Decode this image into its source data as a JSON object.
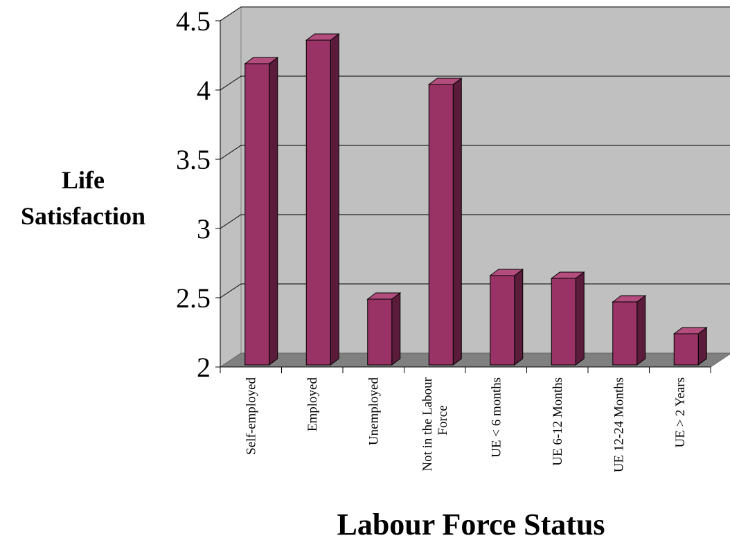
{
  "chart_data": {
    "type": "bar",
    "style": "3d-column",
    "categories": [
      "Self-employed",
      "Employed",
      "Unemployed",
      "Not in the Labour Force",
      "UE < 6 months",
      "UE 6-12 Months",
      "UE 12-24 Months",
      "UE > 2 Years"
    ],
    "values": [
      4.21,
      4.38,
      2.51,
      4.06,
      2.68,
      2.66,
      2.49,
      2.26
    ],
    "title": "",
    "xlabel": "Labour Force Status",
    "ylabel": "Life Satisfaction",
    "ylim": [
      2,
      4.5
    ],
    "yticks": [
      "2",
      "2.5",
      "3",
      "3.5",
      "4",
      "4.5"
    ],
    "grid": true,
    "legend": "none",
    "colors": {
      "bar_front": "#993366",
      "bar_side": "#5a1c3a",
      "bar_top": "#b34d7d",
      "wall": "#c0c0c0",
      "floor": "#808080",
      "gridline": "#000000"
    }
  }
}
